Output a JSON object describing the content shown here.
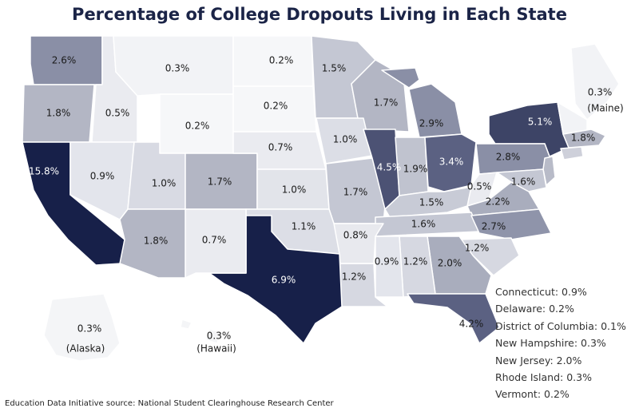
{
  "title": "Percentage of College Dropouts Living in Each State",
  "source": "Education Data Initiative source: National Student Clearinghouse Research Center",
  "colors": {
    "darkest": "#172049",
    "dark": "#3d4466",
    "mid_dark": "#5b6182",
    "mid": "#8a8fa6",
    "light_mid": "#b3b6c4",
    "light": "#d3d5de",
    "lighter": "#e5e6ec",
    "lightest": "#f2f3f6",
    "label_dark": "#1a1a1a",
    "label_light": "#ffffff",
    "title": "#1b2447"
  },
  "states": {
    "washington": "2.6%",
    "oregon": "1.8%",
    "idaho": "0.5%",
    "montana": "0.3%",
    "wyoming": "0.2%",
    "north_dakota": "0.2%",
    "south_dakota": "0.2%",
    "minnesota": "1.5%",
    "wisconsin": "1.7%",
    "michigan": "2.9%",
    "maine": "0.3%",
    "maine_name": "(Maine)",
    "new_york": "5.1%",
    "massachusetts": "1.8%",
    "california": "15.8%",
    "nevada": "0.9%",
    "utah": "1.0%",
    "colorado": "1.7%",
    "nebraska": "0.7%",
    "iowa": "1.0%",
    "illinois": "4.5%",
    "indiana": "1.9%",
    "ohio": "3.4%",
    "pennsylvania": "2.8%",
    "kansas": "1.0%",
    "missouri": "1.7%",
    "kentucky": "1.5%",
    "west_virginia": "0.5%",
    "maryland": "1.6%",
    "virginia": "2.2%",
    "arizona": "1.8%",
    "new_mexico": "0.7%",
    "oklahoma": "1.1%",
    "arkansas": "0.8%",
    "tennessee": "1.6%",
    "north_carolina": "2.7%",
    "south_carolina": "1.2%",
    "texas": "6.9%",
    "louisiana": "1.2%",
    "mississippi": "0.9%",
    "alabama": "1.2%",
    "georgia": "2.0%",
    "florida": "4.2%",
    "alaska": "0.3%",
    "alaska_name": "(Alaska)",
    "hawaii": "0.3%",
    "hawaii_name": "(Hawaii)"
  },
  "legend": [
    "Connecticut: 0.9%",
    "Delaware: 0.2%",
    "District of Columbia: 0.1%",
    "New Hampshire: 0.3%",
    "New Jersey: 2.0%",
    "Rhode Island: 0.3%",
    "Vermont: 0.2%"
  ]
}
